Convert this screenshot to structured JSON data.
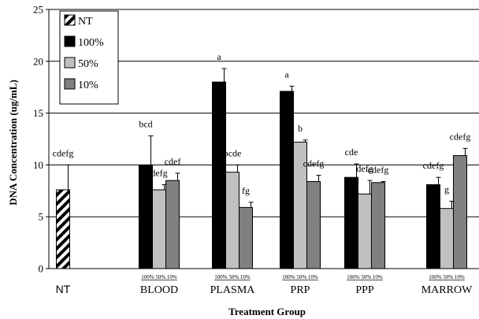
{
  "chart_data": {
    "type": "bar",
    "xlabel": "Treatment Group",
    "ylabel": "DNA Concentration (ug/mL)",
    "ylim": [
      0,
      25
    ],
    "yticks": [
      0,
      5,
      10,
      15,
      20,
      25
    ],
    "grid": true,
    "legend_position": "top-left",
    "categories": [
      "NT",
      "BLOOD",
      "PLASMA",
      "PRP",
      "PPP",
      "MARROW"
    ],
    "sub_labels": [
      "100%",
      "50%",
      "10%"
    ],
    "series": [
      {
        "name": "NT",
        "color": "#000000",
        "pattern": "diagonal-stripes",
        "values": [
          7.6,
          null,
          null,
          null,
          null,
          null
        ],
        "errors": [
          2.4,
          null,
          null,
          null,
          null,
          null
        ],
        "labels": [
          "cdefg",
          null,
          null,
          null,
          null,
          null
        ]
      },
      {
        "name": "100%",
        "color": "#000000",
        "values": [
          null,
          10.0,
          18.0,
          17.1,
          8.8,
          8.1
        ],
        "errors": [
          null,
          2.8,
          1.3,
          0.5,
          1.3,
          0.7
        ],
        "labels": [
          null,
          "bcd",
          "a",
          "a",
          "cde",
          "cdefg"
        ]
      },
      {
        "name": "50%",
        "color": "#c0c0c0",
        "values": [
          null,
          7.6,
          9.3,
          12.2,
          7.2,
          5.8
        ],
        "errors": [
          null,
          0.5,
          0.7,
          0.2,
          1.3,
          0.7
        ],
        "labels": [
          null,
          "defg",
          "bcde",
          "b",
          "defg",
          "g"
        ]
      },
      {
        "name": "10%",
        "color": "#808080",
        "values": [
          null,
          8.5,
          5.9,
          8.4,
          8.3,
          10.9
        ],
        "errors": [
          null,
          0.7,
          0.5,
          0.6,
          0.1,
          0.7
        ],
        "labels": [
          null,
          "cdef",
          "fg",
          "cdefg",
          "cdefg",
          "cdefg"
        ]
      }
    ]
  }
}
